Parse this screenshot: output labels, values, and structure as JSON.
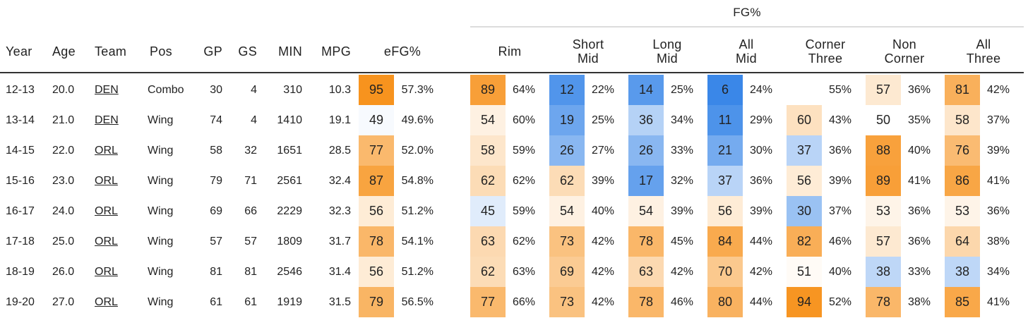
{
  "table": {
    "group_header": "FG%",
    "headers": {
      "year": "Year",
      "age": "Age",
      "team": "Team",
      "pos": "Pos",
      "gp": "GP",
      "gs": "GS",
      "min": "MIN",
      "mpg": "MPG",
      "efg": "eFG%",
      "rim": [
        "Rim"
      ],
      "short_mid": [
        "Short",
        "Mid"
      ],
      "long_mid": [
        "Long",
        "Mid"
      ],
      "all_mid": [
        "All",
        "Mid"
      ],
      "corner_three": [
        "Corner",
        "Three"
      ],
      "non_corner": [
        "Non",
        "Corner"
      ],
      "all_three": [
        "All",
        "Three"
      ]
    },
    "scale_colors": {
      "high": "#f7931e",
      "low": "#3a87e8",
      "neutral": "#ffffff"
    },
    "rows": [
      {
        "year": "12-13",
        "age": "20.0",
        "team": "DEN",
        "pos": "Combo",
        "gp": "30",
        "gs": "4",
        "min": "310",
        "mpg": "10.3",
        "efg": {
          "pctl": "95",
          "val": "57.3%"
        },
        "rim": {
          "pctl": "89",
          "val": "64%"
        },
        "short_mid": {
          "pctl": "12",
          "val": "22%"
        },
        "long_mid": {
          "pctl": "14",
          "val": "25%"
        },
        "all_mid": {
          "pctl": "6",
          "val": "24%"
        },
        "corner_three": {
          "pctl": "",
          "val": "55%"
        },
        "non_corner": {
          "pctl": "57",
          "val": "36%"
        },
        "all_three": {
          "pctl": "81",
          "val": "42%"
        }
      },
      {
        "year": "13-14",
        "age": "21.0",
        "team": "DEN",
        "pos": "Wing",
        "gp": "74",
        "gs": "4",
        "min": "1410",
        "mpg": "19.1",
        "efg": {
          "pctl": "49",
          "val": "49.6%"
        },
        "rim": {
          "pctl": "54",
          "val": "60%"
        },
        "short_mid": {
          "pctl": "19",
          "val": "25%"
        },
        "long_mid": {
          "pctl": "36",
          "val": "34%"
        },
        "all_mid": {
          "pctl": "11",
          "val": "29%"
        },
        "corner_three": {
          "pctl": "60",
          "val": "43%"
        },
        "non_corner": {
          "pctl": "50",
          "val": "35%"
        },
        "all_three": {
          "pctl": "58",
          "val": "37%"
        }
      },
      {
        "year": "14-15",
        "age": "22.0",
        "team": "ORL",
        "pos": "Wing",
        "gp": "58",
        "gs": "32",
        "min": "1651",
        "mpg": "28.5",
        "efg": {
          "pctl": "77",
          "val": "52.0%"
        },
        "rim": {
          "pctl": "58",
          "val": "59%"
        },
        "short_mid": {
          "pctl": "26",
          "val": "27%"
        },
        "long_mid": {
          "pctl": "26",
          "val": "33%"
        },
        "all_mid": {
          "pctl": "21",
          "val": "30%"
        },
        "corner_three": {
          "pctl": "37",
          "val": "36%"
        },
        "non_corner": {
          "pctl": "88",
          "val": "40%"
        },
        "all_three": {
          "pctl": "76",
          "val": "39%"
        }
      },
      {
        "year": "15-16",
        "age": "23.0",
        "team": "ORL",
        "pos": "Wing",
        "gp": "79",
        "gs": "71",
        "min": "2561",
        "mpg": "32.4",
        "efg": {
          "pctl": "87",
          "val": "54.8%"
        },
        "rim": {
          "pctl": "62",
          "val": "62%"
        },
        "short_mid": {
          "pctl": "62",
          "val": "39%"
        },
        "long_mid": {
          "pctl": "17",
          "val": "32%"
        },
        "all_mid": {
          "pctl": "37",
          "val": "36%"
        },
        "corner_three": {
          "pctl": "56",
          "val": "39%"
        },
        "non_corner": {
          "pctl": "89",
          "val": "41%"
        },
        "all_three": {
          "pctl": "86",
          "val": "41%"
        }
      },
      {
        "year": "16-17",
        "age": "24.0",
        "team": "ORL",
        "pos": "Wing",
        "gp": "69",
        "gs": "66",
        "min": "2229",
        "mpg": "32.3",
        "efg": {
          "pctl": "56",
          "val": "51.2%"
        },
        "rim": {
          "pctl": "45",
          "val": "59%"
        },
        "short_mid": {
          "pctl": "54",
          "val": "40%"
        },
        "long_mid": {
          "pctl": "54",
          "val": "39%"
        },
        "all_mid": {
          "pctl": "56",
          "val": "39%"
        },
        "corner_three": {
          "pctl": "30",
          "val": "37%"
        },
        "non_corner": {
          "pctl": "53",
          "val": "36%"
        },
        "all_three": {
          "pctl": "53",
          "val": "36%"
        }
      },
      {
        "year": "17-18",
        "age": "25.0",
        "team": "ORL",
        "pos": "Wing",
        "gp": "57",
        "gs": "57",
        "min": "1809",
        "mpg": "31.7",
        "efg": {
          "pctl": "78",
          "val": "54.1%"
        },
        "rim": {
          "pctl": "63",
          "val": "62%"
        },
        "short_mid": {
          "pctl": "73",
          "val": "42%"
        },
        "long_mid": {
          "pctl": "78",
          "val": "45%"
        },
        "all_mid": {
          "pctl": "84",
          "val": "44%"
        },
        "corner_three": {
          "pctl": "82",
          "val": "46%"
        },
        "non_corner": {
          "pctl": "57",
          "val": "36%"
        },
        "all_three": {
          "pctl": "64",
          "val": "38%"
        }
      },
      {
        "year": "18-19",
        "age": "26.0",
        "team": "ORL",
        "pos": "Wing",
        "gp": "81",
        "gs": "81",
        "min": "2546",
        "mpg": "31.4",
        "efg": {
          "pctl": "56",
          "val": "51.2%"
        },
        "rim": {
          "pctl": "62",
          "val": "63%"
        },
        "short_mid": {
          "pctl": "69",
          "val": "42%"
        },
        "long_mid": {
          "pctl": "63",
          "val": "42%"
        },
        "all_mid": {
          "pctl": "70",
          "val": "42%"
        },
        "corner_three": {
          "pctl": "51",
          "val": "40%"
        },
        "non_corner": {
          "pctl": "38",
          "val": "33%"
        },
        "all_three": {
          "pctl": "38",
          "val": "34%"
        }
      },
      {
        "year": "19-20",
        "age": "27.0",
        "team": "ORL",
        "pos": "Wing",
        "gp": "61",
        "gs": "61",
        "min": "1919",
        "mpg": "31.5",
        "efg": {
          "pctl": "79",
          "val": "56.5%"
        },
        "rim": {
          "pctl": "77",
          "val": "66%"
        },
        "short_mid": {
          "pctl": "73",
          "val": "42%"
        },
        "long_mid": {
          "pctl": "78",
          "val": "46%"
        },
        "all_mid": {
          "pctl": "80",
          "val": "44%"
        },
        "corner_three": {
          "pctl": "94",
          "val": "52%"
        },
        "non_corner": {
          "pctl": "78",
          "val": "38%"
        },
        "all_three": {
          "pctl": "85",
          "val": "41%"
        }
      }
    ]
  }
}
